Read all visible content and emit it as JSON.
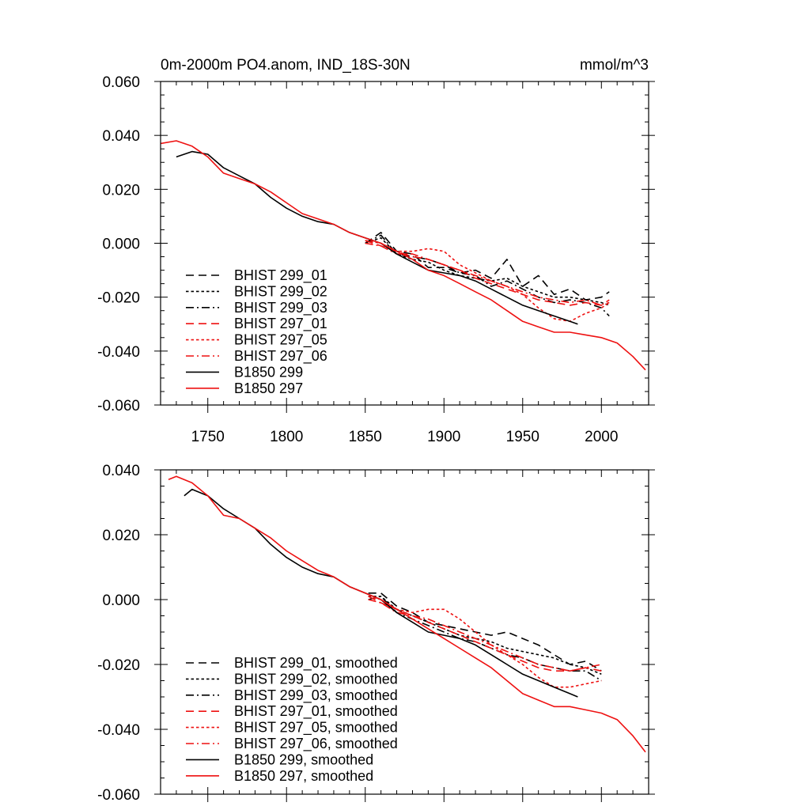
{
  "chart_data": [
    {
      "type": "line",
      "title": "0m-2000m PO4.anom, IND_18S-30N",
      "units": "mmol/m^3",
      "xlim": [
        1720,
        2030
      ],
      "ylim": [
        -0.06,
        0.06
      ],
      "x_ticks": [
        1750,
        1800,
        1850,
        1900,
        1950,
        2000
      ],
      "x_tick_labels": [
        "1750",
        "1800",
        "1850",
        "1900",
        "1950",
        "2000"
      ],
      "y_ticks": [
        -0.06,
        -0.04,
        -0.02,
        0.0,
        0.02,
        0.04,
        0.06
      ],
      "y_tick_labels": [
        "-0.060",
        "-0.040",
        "-0.020",
        "0.000",
        "0.020",
        "0.040",
        "0.060"
      ],
      "legend_position": "lower-left",
      "series": [
        {
          "name": "BHIST 299_01",
          "color": "#000000",
          "dash": "long-dash",
          "x": [
            1850,
            1860,
            1870,
            1880,
            1890,
            1900,
            1910,
            1920,
            1930,
            1940,
            1950,
            1960,
            1970,
            1980,
            1990,
            2000,
            2005
          ],
          "y": [
            0.0,
            0.004,
            -0.003,
            -0.004,
            -0.009,
            -0.009,
            -0.011,
            -0.01,
            -0.013,
            -0.006,
            -0.016,
            -0.012,
            -0.019,
            -0.017,
            -0.021,
            -0.02,
            -0.018
          ]
        },
        {
          "name": "BHIST 299_02",
          "color": "#000000",
          "dash": "dotted",
          "x": [
            1850,
            1860,
            1870,
            1880,
            1890,
            1900,
            1910,
            1920,
            1930,
            1940,
            1950,
            1960,
            1970,
            1980,
            1990,
            2000,
            2005
          ],
          "y": [
            0.0,
            0.002,
            -0.004,
            -0.006,
            -0.007,
            -0.01,
            -0.012,
            -0.013,
            -0.014,
            -0.013,
            -0.016,
            -0.018,
            -0.02,
            -0.02,
            -0.021,
            -0.022,
            -0.023
          ]
        },
        {
          "name": "BHIST 299_03",
          "color": "#000000",
          "dash": "dash-dot",
          "x": [
            1850,
            1860,
            1870,
            1880,
            1890,
            1900,
            1910,
            1920,
            1930,
            1940,
            1950,
            1960,
            1970,
            1980,
            1990,
            2000,
            2005
          ],
          "y": [
            0.0,
            0.003,
            -0.004,
            -0.005,
            -0.006,
            -0.008,
            -0.011,
            -0.012,
            -0.016,
            -0.014,
            -0.017,
            -0.02,
            -0.022,
            -0.021,
            -0.022,
            -0.024,
            -0.027
          ]
        },
        {
          "name": "BHIST 297_01",
          "color": "#ee1111",
          "dash": "long-dash",
          "x": [
            1850,
            1860,
            1870,
            1880,
            1890,
            1900,
            1910,
            1920,
            1930,
            1940,
            1950,
            1960,
            1970,
            1980,
            1990,
            2000,
            2005
          ],
          "y": [
            0.001,
            -0.001,
            -0.003,
            -0.005,
            -0.006,
            -0.008,
            -0.01,
            -0.013,
            -0.015,
            -0.017,
            -0.019,
            -0.021,
            -0.022,
            -0.023,
            -0.022,
            -0.023,
            -0.022
          ]
        },
        {
          "name": "BHIST 297_05",
          "color": "#ee1111",
          "dash": "dotted",
          "x": [
            1850,
            1860,
            1870,
            1880,
            1890,
            1900,
            1910,
            1920,
            1930,
            1940,
            1950,
            1960,
            1970,
            1980,
            1990,
            2000,
            2005
          ],
          "y": [
            0.001,
            0.0,
            -0.003,
            -0.003,
            -0.002,
            -0.003,
            -0.008,
            -0.011,
            -0.014,
            -0.016,
            -0.019,
            -0.024,
            -0.028,
            -0.029,
            -0.026,
            -0.024,
            -0.022
          ]
        },
        {
          "name": "BHIST 297_06",
          "color": "#ee1111",
          "dash": "dash-dot",
          "x": [
            1850,
            1860,
            1870,
            1880,
            1890,
            1900,
            1910,
            1920,
            1930,
            1940,
            1950,
            1960,
            1970,
            1980,
            1990,
            2000,
            2005
          ],
          "y": [
            0.0,
            -0.001,
            -0.004,
            -0.004,
            -0.006,
            -0.008,
            -0.01,
            -0.012,
            -0.014,
            -0.016,
            -0.018,
            -0.02,
            -0.021,
            -0.022,
            -0.021,
            -0.023,
            -0.021
          ]
        },
        {
          "name": "B1850 299",
          "color": "#000000",
          "dash": "solid",
          "x": [
            1730,
            1740,
            1750,
            1760,
            1770,
            1780,
            1790,
            1800,
            1810,
            1820,
            1830,
            1840,
            1850,
            1860,
            1870,
            1880,
            1890,
            1900,
            1910,
            1920,
            1930,
            1940,
            1950,
            1960,
            1970,
            1980,
            1985
          ],
          "y": [
            0.032,
            0.034,
            0.033,
            0.028,
            0.025,
            0.022,
            0.017,
            0.013,
            0.01,
            0.008,
            0.007,
            0.004,
            0.002,
            0.0,
            -0.004,
            -0.007,
            -0.01,
            -0.011,
            -0.012,
            -0.014,
            -0.017,
            -0.02,
            -0.023,
            -0.025,
            -0.027,
            -0.029,
            -0.03
          ]
        },
        {
          "name": "B1850 297",
          "color": "#ee1111",
          "dash": "solid",
          "x": [
            1720,
            1730,
            1740,
            1750,
            1760,
            1770,
            1780,
            1790,
            1800,
            1810,
            1820,
            1830,
            1840,
            1850,
            1860,
            1870,
            1880,
            1890,
            1900,
            1910,
            1920,
            1930,
            1940,
            1950,
            1960,
            1970,
            1980,
            1990,
            2000,
            2010,
            2020,
            2028
          ],
          "y": [
            0.037,
            0.038,
            0.036,
            0.032,
            0.026,
            0.024,
            0.022,
            0.019,
            0.015,
            0.011,
            0.009,
            0.007,
            0.004,
            0.002,
            0.0,
            -0.003,
            -0.006,
            -0.01,
            -0.012,
            -0.015,
            -0.018,
            -0.021,
            -0.025,
            -0.029,
            -0.031,
            -0.033,
            -0.033,
            -0.034,
            -0.035,
            -0.037,
            -0.042,
            -0.047
          ]
        }
      ]
    },
    {
      "type": "line",
      "title": "",
      "xlim": [
        1720,
        2030
      ],
      "ylim": [
        -0.06,
        0.04
      ],
      "x_ticks": [
        1750,
        1800,
        1850,
        1900,
        1950,
        2000
      ],
      "y_ticks": [
        -0.06,
        -0.04,
        -0.02,
        0.0,
        0.02,
        0.04
      ],
      "y_tick_labels": [
        "-0.060",
        "-0.040",
        "-0.020",
        "0.000",
        "0.020",
        "0.040"
      ],
      "legend_position": "lower-left",
      "series": [
        {
          "name": "BHIST 299_01, smoothed",
          "color": "#000000",
          "dash": "long-dash",
          "x": [
            1852,
            1860,
            1870,
            1880,
            1890,
            1900,
            1910,
            1920,
            1930,
            1940,
            1950,
            1960,
            1970,
            1980,
            1990,
            2000
          ],
          "y": [
            0.002,
            0.002,
            -0.002,
            -0.004,
            -0.007,
            -0.008,
            -0.009,
            -0.01,
            -0.011,
            -0.01,
            -0.012,
            -0.014,
            -0.017,
            -0.02,
            -0.019,
            -0.022
          ]
        },
        {
          "name": "BHIST 299_02, smoothed",
          "color": "#000000",
          "dash": "dotted",
          "x": [
            1852,
            1860,
            1870,
            1880,
            1890,
            1900,
            1910,
            1920,
            1930,
            1940,
            1950,
            1960,
            1970,
            1980,
            1990,
            2000
          ],
          "y": [
            0.001,
            0.001,
            -0.003,
            -0.005,
            -0.007,
            -0.009,
            -0.011,
            -0.012,
            -0.013,
            -0.015,
            -0.016,
            -0.017,
            -0.018,
            -0.02,
            -0.021,
            -0.023
          ]
        },
        {
          "name": "BHIST 299_03, smoothed",
          "color": "#000000",
          "dash": "dash-dot",
          "x": [
            1852,
            1860,
            1870,
            1880,
            1890,
            1900,
            1910,
            1920,
            1930,
            1940,
            1950,
            1960,
            1970,
            1980,
            1990,
            2000
          ],
          "y": [
            0.0,
            0.001,
            -0.004,
            -0.006,
            -0.008,
            -0.01,
            -0.012,
            -0.013,
            -0.015,
            -0.017,
            -0.018,
            -0.02,
            -0.021,
            -0.022,
            -0.022,
            -0.025
          ]
        },
        {
          "name": "BHIST 297_01, smoothed",
          "color": "#ee1111",
          "dash": "long-dash",
          "x": [
            1852,
            1860,
            1870,
            1880,
            1890,
            1900,
            1910,
            1920,
            1930,
            1940,
            1950,
            1960,
            1970,
            1980,
            1990,
            2000
          ],
          "y": [
            0.001,
            -0.001,
            -0.003,
            -0.005,
            -0.007,
            -0.009,
            -0.011,
            -0.013,
            -0.015,
            -0.017,
            -0.019,
            -0.021,
            -0.022,
            -0.022,
            -0.021,
            -0.022
          ]
        },
        {
          "name": "BHIST 297_05, smoothed",
          "color": "#ee1111",
          "dash": "dotted",
          "x": [
            1852,
            1860,
            1870,
            1880,
            1890,
            1900,
            1910,
            1920,
            1930,
            1940,
            1950,
            1960,
            1970,
            1980,
            1990,
            2000
          ],
          "y": [
            0.001,
            0.0,
            -0.003,
            -0.004,
            -0.003,
            -0.003,
            -0.006,
            -0.01,
            -0.014,
            -0.017,
            -0.02,
            -0.024,
            -0.027,
            -0.027,
            -0.026,
            -0.025
          ]
        },
        {
          "name": "BHIST 297_06, smoothed",
          "color": "#ee1111",
          "dash": "dash-dot",
          "x": [
            1852,
            1860,
            1870,
            1880,
            1890,
            1900,
            1910,
            1920,
            1930,
            1940,
            1950,
            1960,
            1970,
            1980,
            1990,
            2000
          ],
          "y": [
            0.0,
            -0.001,
            -0.004,
            -0.005,
            -0.006,
            -0.008,
            -0.01,
            -0.012,
            -0.014,
            -0.016,
            -0.018,
            -0.02,
            -0.021,
            -0.022,
            -0.021,
            -0.02
          ]
        },
        {
          "name": "B1850 299, smoothed",
          "color": "#000000",
          "dash": "solid",
          "x": [
            1735,
            1740,
            1750,
            1760,
            1770,
            1780,
            1790,
            1800,
            1810,
            1820,
            1830,
            1840,
            1850,
            1860,
            1870,
            1880,
            1890,
            1900,
            1910,
            1920,
            1930,
            1940,
            1950,
            1960,
            1970,
            1980,
            1985
          ],
          "y": [
            0.032,
            0.034,
            0.032,
            0.028,
            0.025,
            0.022,
            0.017,
            0.013,
            0.01,
            0.008,
            0.007,
            0.004,
            0.002,
            0.0,
            -0.004,
            -0.007,
            -0.01,
            -0.011,
            -0.012,
            -0.014,
            -0.017,
            -0.02,
            -0.023,
            -0.025,
            -0.027,
            -0.029,
            -0.03
          ]
        },
        {
          "name": "B1850 297, smoothed",
          "color": "#ee1111",
          "dash": "solid",
          "x": [
            1725,
            1730,
            1740,
            1750,
            1760,
            1770,
            1780,
            1790,
            1800,
            1810,
            1820,
            1830,
            1840,
            1850,
            1860,
            1870,
            1880,
            1890,
            1900,
            1910,
            1920,
            1930,
            1940,
            1950,
            1960,
            1970,
            1980,
            1990,
            2000,
            2010,
            2020,
            2028
          ],
          "y": [
            0.037,
            0.038,
            0.036,
            0.032,
            0.026,
            0.025,
            0.022,
            0.019,
            0.015,
            0.012,
            0.009,
            0.007,
            0.004,
            0.002,
            0.0,
            -0.003,
            -0.006,
            -0.009,
            -0.012,
            -0.015,
            -0.018,
            -0.021,
            -0.025,
            -0.029,
            -0.031,
            -0.033,
            -0.033,
            -0.034,
            -0.035,
            -0.037,
            -0.042,
            -0.047
          ]
        }
      ]
    }
  ]
}
